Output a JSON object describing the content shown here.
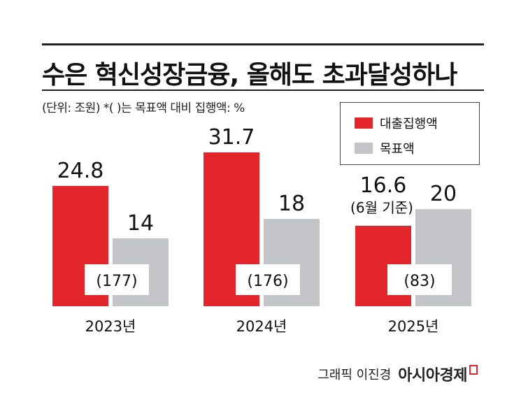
{
  "header": {
    "title": "수은 혁신성장금융, 올해도 초과달성하나",
    "subtitle": "(단위: 조원)    *(     )는 목표액 대비 집행액: %"
  },
  "legend": {
    "items": [
      {
        "label": "대출집행액",
        "color": "#e3262b"
      },
      {
        "label": "목표액",
        "color": "#c3c5c8"
      }
    ]
  },
  "chart_data": {
    "type": "bar",
    "categories": [
      "2023년",
      "2024년",
      "2025년"
    ],
    "series": [
      {
        "name": "대출집행액",
        "color": "#e3262b",
        "values": [
          24.8,
          31.7,
          16.6
        ],
        "labels": [
          "24.8",
          "31.7",
          "16.6"
        ]
      },
      {
        "name": "목표액",
        "color": "#c3c5c8",
        "values": [
          14,
          18,
          20
        ],
        "labels": [
          "14",
          "18",
          "20"
        ]
      }
    ],
    "percent_labels": [
      "(177)",
      "(176)",
      "(83)"
    ],
    "annotations": [
      {
        "category": "2025년",
        "text": "(6월 기준)"
      }
    ],
    "ylim": [
      0,
      31.7
    ],
    "grid": false,
    "legend_position": "top-right"
  },
  "credit": {
    "text": "그래픽 이진경",
    "brand": "아시아경제"
  }
}
